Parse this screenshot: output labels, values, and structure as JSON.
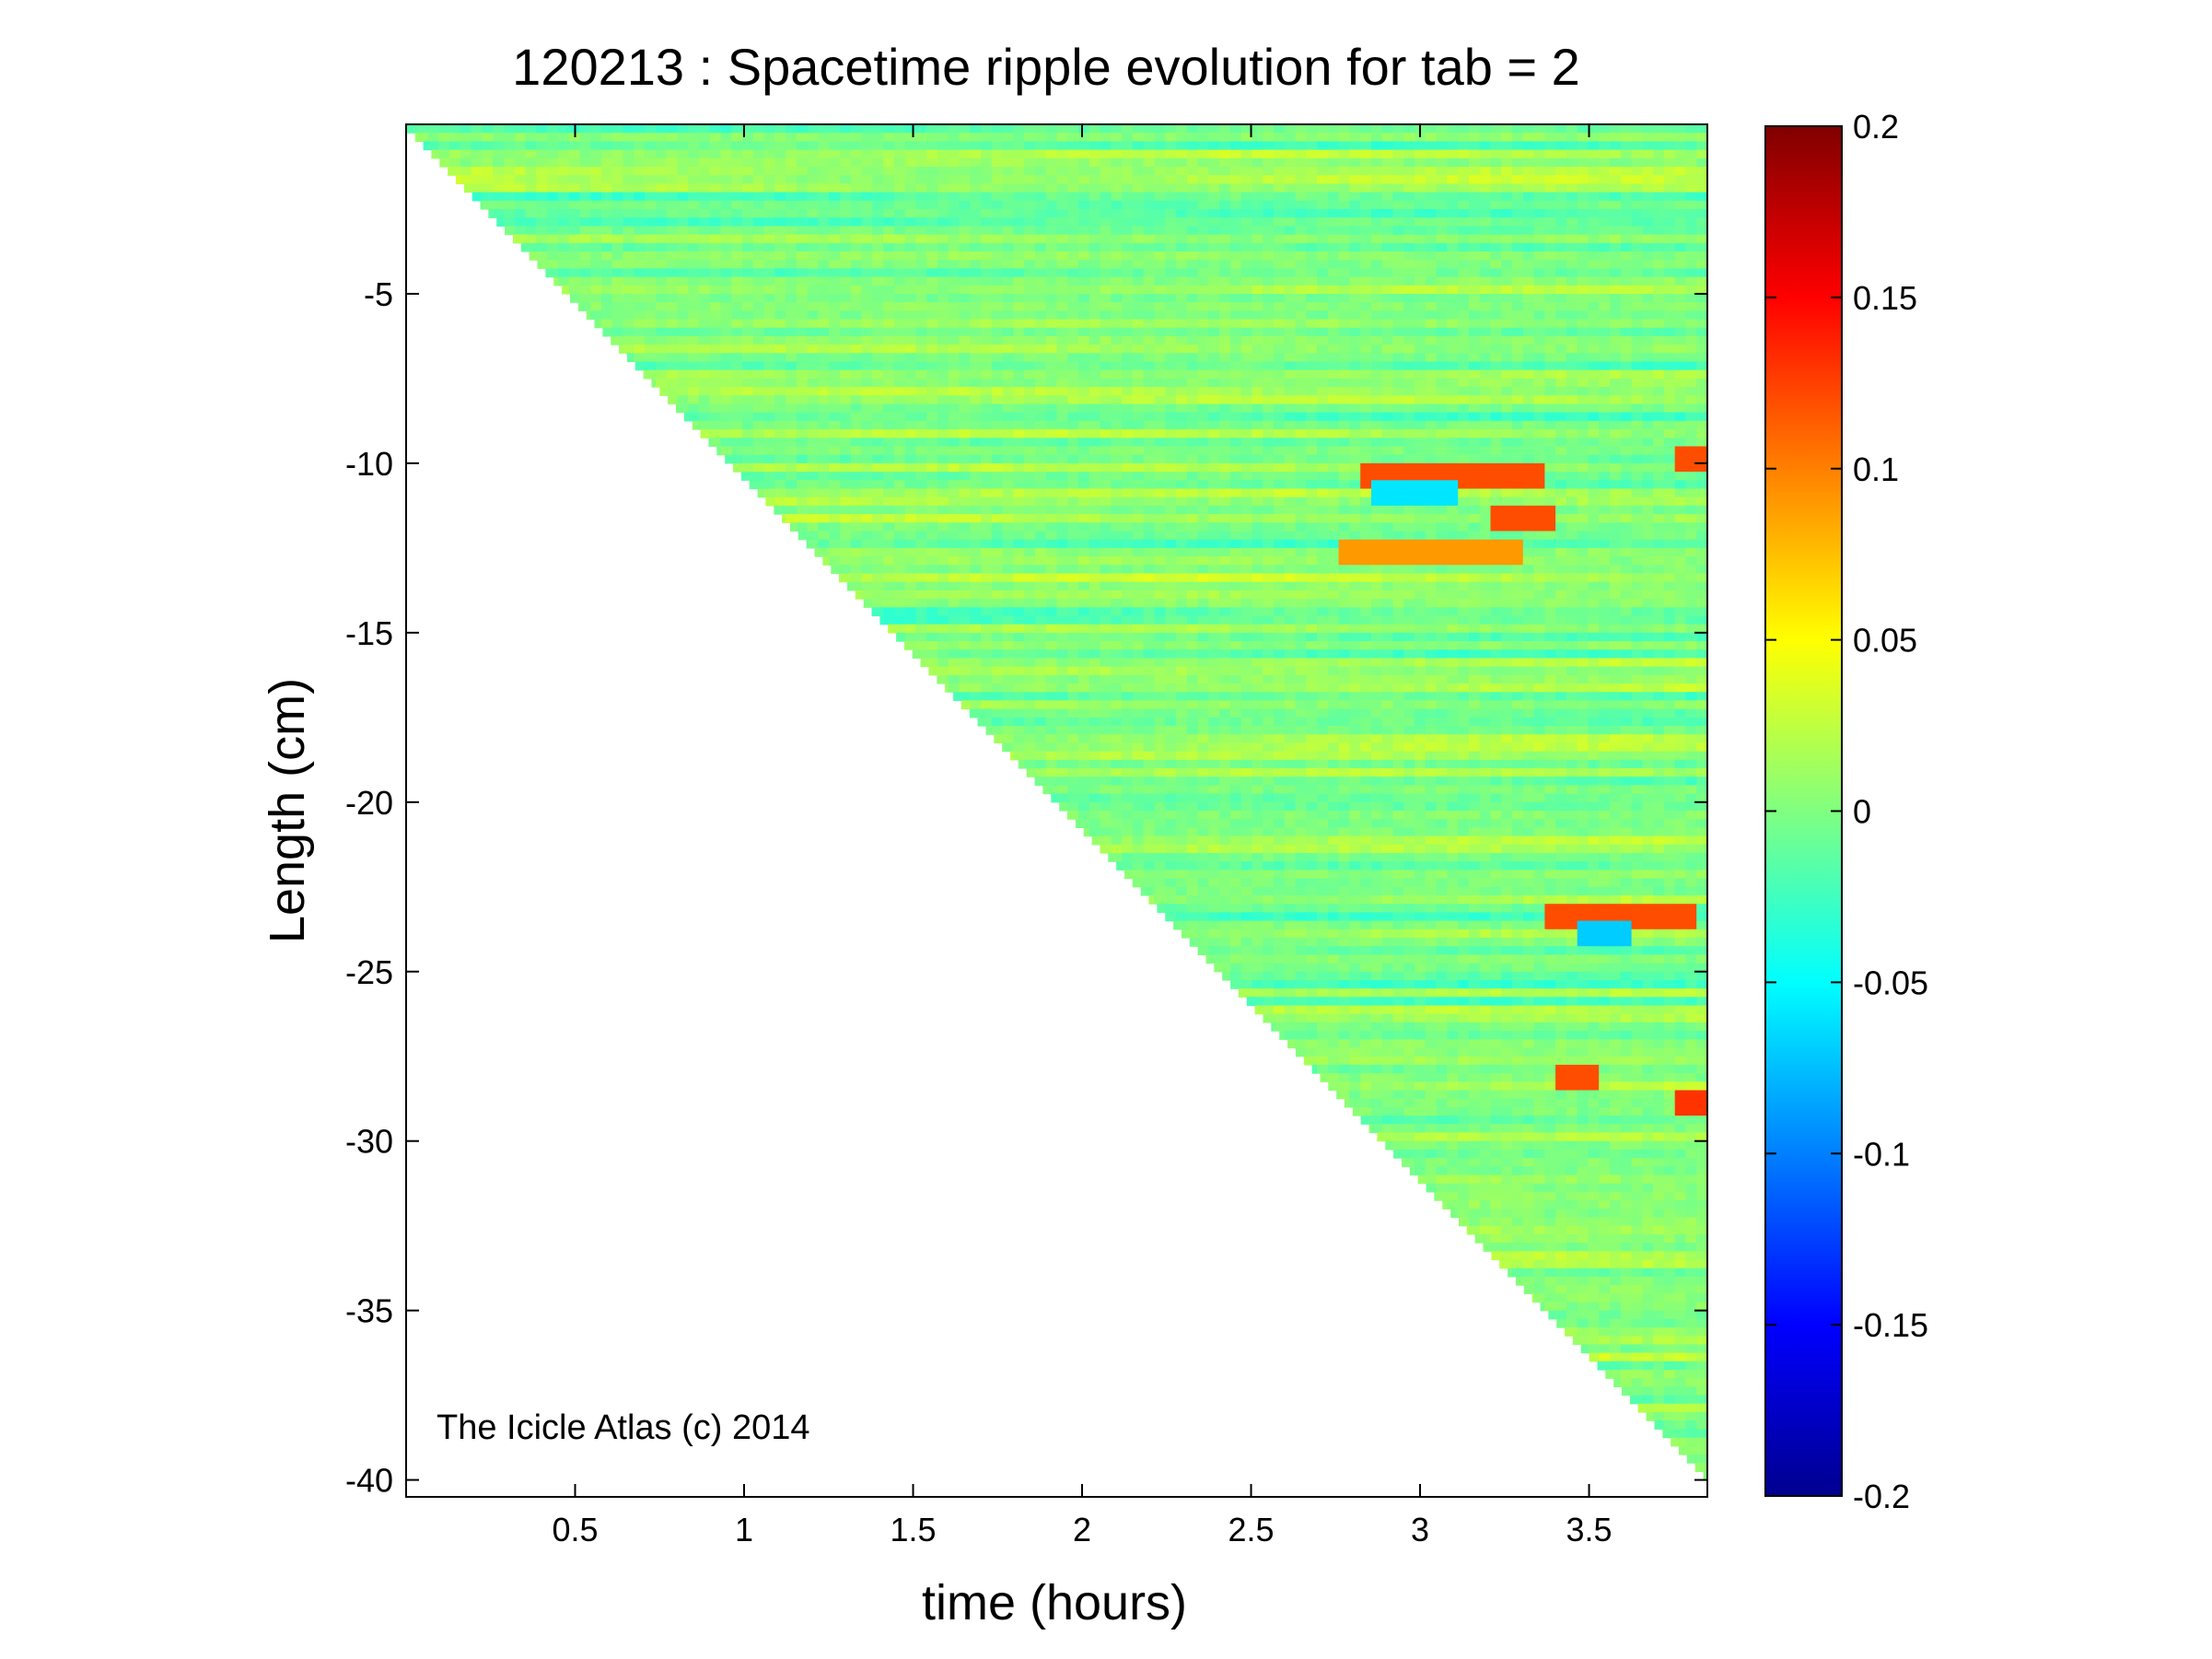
{
  "chart_data": {
    "type": "heatmap",
    "title": "120213 : Spacetime ripple evolution for tab = 2",
    "xlabel": "time (hours)",
    "ylabel": "Length (cm)",
    "xlim": [
      0.0,
      3.85
    ],
    "ylim": [
      -40.5,
      0.0
    ],
    "x_ticks": [
      0.5,
      1,
      1.5,
      2,
      2.5,
      3,
      3.5
    ],
    "x_tick_labels": [
      "0.5",
      "1",
      "1.5",
      "2",
      "2.5",
      "3",
      "3.5"
    ],
    "y_ticks": [
      -5,
      -10,
      -15,
      -20,
      -25,
      -30,
      -35,
      -40
    ],
    "y_tick_labels": [
      "-5",
      "-10",
      "-15",
      "-20",
      "-25",
      "-30",
      "-35",
      "-40"
    ],
    "colormap": "jet",
    "clim": [
      -0.2,
      0.2
    ],
    "colorbar_ticks": [
      0.2,
      0.15,
      0.1,
      0.05,
      0,
      -0.05,
      -0.1,
      -0.15,
      -0.2
    ],
    "colorbar_tick_labels": [
      "0.2",
      "0.15",
      "0.1",
      "0.05",
      "0",
      "-0.05",
      "-0.1",
      "-0.15",
      "-0.2"
    ],
    "data_boundary": {
      "description_points": [
        [
          0.0,
          -0.1
        ],
        [
          3.85,
          -40.0
        ]
      ]
    },
    "background_value": 0,
    "notable_features": [
      {
        "x_range": [
          2.8,
          3.35
        ],
        "y": -10.4,
        "value": 0.12
      },
      {
        "x_range": [
          3.2,
          3.4
        ],
        "y": -11.7,
        "value": 0.12
      },
      {
        "x_range": [
          2.75,
          3.3
        ],
        "y": -12.6,
        "value": 0.09
      },
      {
        "x_range": [
          3.35,
          3.8
        ],
        "y": -23.3,
        "value": 0.12
      },
      {
        "x_range": [
          3.4,
          3.5
        ],
        "y": -28.1,
        "value": 0.12
      },
      {
        "x_range": [
          3.75,
          3.85
        ],
        "y": -28.9,
        "value": 0.13
      },
      {
        "x_range": [
          3.75,
          3.85
        ],
        "y": -9.9,
        "value": 0.12
      },
      {
        "x_range": [
          3.45,
          3.6
        ],
        "y": -23.8,
        "value": -0.07
      },
      {
        "x_range": [
          2.85,
          3.1
        ],
        "y": -10.8,
        "value": -0.06
      }
    ],
    "grid": false
  },
  "watermark": "The Icicle Atlas (c) 2014",
  "colors": {
    "background": "#ffffff",
    "axis": "#000000",
    "colormap_low": "#00008f",
    "colormap_mid": "#80ff80",
    "colormap_high": "#800000"
  }
}
